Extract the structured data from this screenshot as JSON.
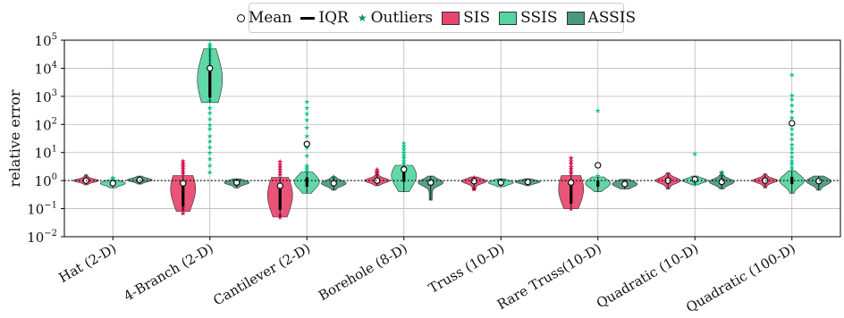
{
  "chart_data": {
    "type": "violin",
    "ylabel": "relative error",
    "yscale": "log",
    "ylim": [
      0.01,
      100000
    ],
    "ytick_labels": [
      "10",
      "10",
      "10",
      "10",
      "10",
      "10",
      "10",
      "10"
    ],
    "ytick_exponents": [
      "−2",
      "−1",
      "0",
      "1",
      "2",
      "3",
      "4",
      "5"
    ],
    "grid": true,
    "reference_line_y": 1,
    "legend": {
      "placement": "top-center",
      "mean_label": "Mean",
      "iqr_label": "IQR",
      "outliers_label": "Outliers",
      "series_labels": [
        "SIS",
        "SSIS",
        "ASSIS"
      ]
    },
    "categories": [
      "Hat (2-D)",
      "4-Branch (2-D)",
      "Cantilever (2-D)",
      "Borehole (8-D)",
      "Truss (10-D)",
      "Rare Truss(10-D)",
      "Quadratic (10-D)",
      "Quadratic (100-D)"
    ],
    "series": [
      {
        "name": "SIS",
        "color": "#e8456e",
        "outlier_color": "#d6134f",
        "violins": [
          {
            "min": 0.7,
            "max": 1.6,
            "q1": 0.92,
            "q3": 1.1,
            "mean": 1.0,
            "median": 1.0,
            "outliers": []
          },
          {
            "min": 0.08,
            "max": 1.5,
            "q1": 0.12,
            "q3": 0.9,
            "mean": 0.8,
            "median": 0.5,
            "outliers": [
              0.07,
              0.09,
              0.11,
              1.8,
              2.2,
              2.6,
              3.1,
              3.6,
              4.2,
              5.0
            ]
          },
          {
            "min": 0.05,
            "max": 1.3,
            "q1": 0.09,
            "q3": 0.7,
            "mean": 0.65,
            "median": 0.3,
            "outliers": [
              0.05,
              0.06,
              1.6,
              2.0,
              2.5,
              3.0,
              3.8,
              4.8
            ]
          },
          {
            "min": 0.65,
            "max": 1.7,
            "q1": 0.9,
            "q3": 1.15,
            "mean": 1.0,
            "median": 1.0,
            "outliers": [
              1.8,
              2.0,
              2.2,
              2.5
            ]
          },
          {
            "min": 0.45,
            "max": 1.35,
            "q1": 0.85,
            "q3": 1.1,
            "mean": 0.95,
            "median": 0.95,
            "outliers": [
              0.5,
              0.55,
              1.2,
              1.3
            ]
          },
          {
            "min": 0.1,
            "max": 1.5,
            "q1": 0.15,
            "q3": 1.0,
            "mean": 0.85,
            "median": 0.5,
            "outliers": [
              0.1,
              1.8,
              2.1,
              2.6,
              3.2,
              4.0,
              5.0,
              6.5
            ]
          },
          {
            "min": 0.5,
            "max": 1.9,
            "q1": 0.85,
            "q3": 1.15,
            "mean": 1.0,
            "median": 1.0,
            "outliers": []
          },
          {
            "min": 0.55,
            "max": 1.75,
            "q1": 0.88,
            "q3": 1.12,
            "mean": 1.0,
            "median": 1.0,
            "outliers": []
          }
        ]
      },
      {
        "name": "SSIS",
        "color": "#55d49f",
        "outlier_color": "#0cc48a",
        "violins": [
          {
            "min": 0.55,
            "max": 1.05,
            "q1": 0.72,
            "q3": 0.92,
            "mean": 0.8,
            "median": 0.8,
            "outliers": [
              1.2,
              1.3
            ]
          },
          {
            "min": 600,
            "max": 50000,
            "q1": 900,
            "q3": 12000,
            "mean": 10000,
            "median": 4000,
            "outliers": [
              2.0,
              3.5,
              6,
              10,
              16,
              25,
              40,
              70,
              100,
              160,
              260,
              400,
              700,
              15000,
              20000,
              28000,
              35000,
              45000,
              55000,
              65000,
              75000
            ]
          },
          {
            "min": 0.35,
            "max": 2.0,
            "q1": 0.6,
            "q3": 1.3,
            "mean": 20,
            "median": 0.9,
            "outliers": [
              2.2,
              2.6,
              3.0,
              3.5,
              8,
              15,
              40,
              80,
              150,
              250,
              400,
              650
            ]
          },
          {
            "min": 0.4,
            "max": 3.5,
            "q1": 0.9,
            "q3": 3.0,
            "mean": 2.5,
            "median": 1.5,
            "outliers": [
              4,
              5,
              6.5,
              8,
              10,
              13,
              17,
              22
            ]
          },
          {
            "min": 0.6,
            "max": 1.15,
            "q1": 0.75,
            "q3": 0.95,
            "mean": 0.85,
            "median": 0.85,
            "outliers": [
              1.1
            ]
          },
          {
            "min": 0.4,
            "max": 1.35,
            "q1": 0.6,
            "q3": 1.0,
            "mean": 3.5,
            "median": 0.8,
            "outliers": [
              1.5,
              320
            ]
          },
          {
            "min": 0.7,
            "max": 1.45,
            "q1": 0.9,
            "q3": 1.15,
            "mean": 1.1,
            "median": 1.0,
            "outliers": [
              0.75,
              9
            ]
          },
          {
            "min": 0.35,
            "max": 2.2,
            "q1": 0.75,
            "q3": 1.35,
            "mean": 110,
            "median": 1.0,
            "outliers": [
              2.5,
              3,
              4,
              5,
              7,
              10,
              14,
              20,
              30,
              45,
              70,
              110,
              180,
              300,
              500,
              800,
              1100,
              6000
            ]
          }
        ]
      },
      {
        "name": "ASSIS",
        "color": "#4a9a79",
        "outlier_color": "#0a8f62",
        "violins": [
          {
            "min": 0.75,
            "max": 1.45,
            "q1": 0.95,
            "q3": 1.15,
            "mean": 1.05,
            "median": 1.05,
            "outliers": []
          },
          {
            "min": 0.55,
            "max": 1.15,
            "q1": 0.75,
            "q3": 0.95,
            "mean": 0.85,
            "median": 0.85,
            "outliers": []
          },
          {
            "min": 0.45,
            "max": 1.3,
            "q1": 0.7,
            "q3": 0.95,
            "mean": 0.8,
            "median": 0.8,
            "outliers": [
              1.4
            ]
          },
          {
            "min": 0.2,
            "max": 1.45,
            "q1": 0.7,
            "q3": 1.0,
            "mean": 0.85,
            "median": 0.85,
            "outliers": []
          },
          {
            "min": 0.65,
            "max": 1.15,
            "q1": 0.82,
            "q3": 0.98,
            "mean": 0.9,
            "median": 0.9,
            "outliers": []
          },
          {
            "min": 0.5,
            "max": 1.1,
            "q1": 0.65,
            "q3": 0.9,
            "mean": 0.75,
            "median": 0.75,
            "outliers": []
          },
          {
            "min": 0.5,
            "max": 1.55,
            "q1": 0.8,
            "q3": 1.1,
            "mean": 0.9,
            "median": 0.9,
            "outliers": [
              1.6,
              1.8,
              2.0
            ]
          },
          {
            "min": 0.45,
            "max": 1.45,
            "q1": 0.75,
            "q3": 1.1,
            "mean": 0.95,
            "median": 0.95,
            "outliers": []
          }
        ]
      }
    ]
  }
}
